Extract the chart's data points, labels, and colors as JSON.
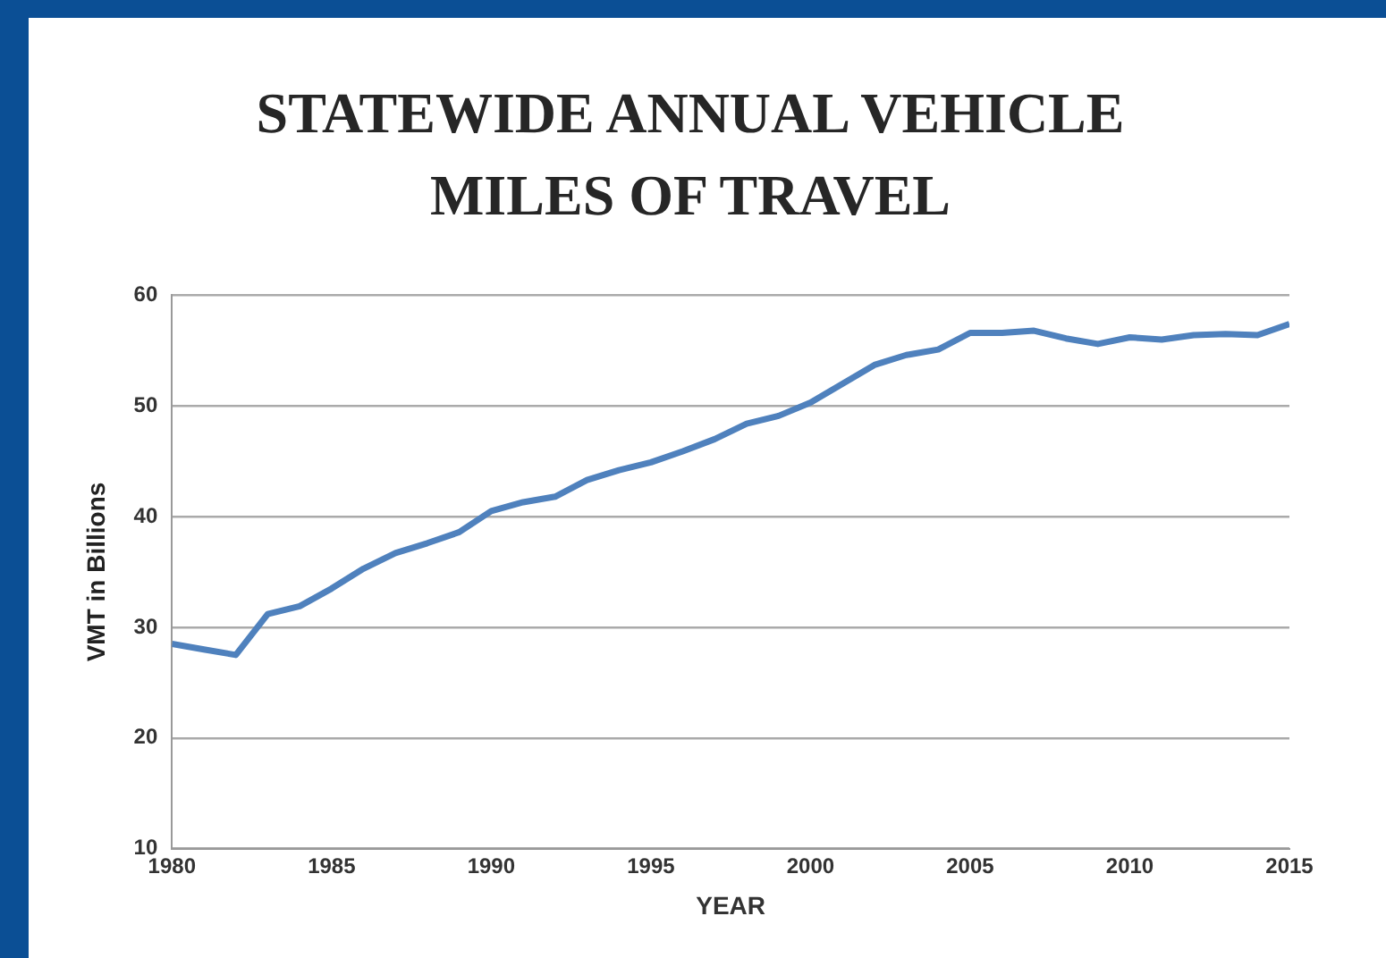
{
  "chart_data": {
    "type": "line",
    "title": "STATEWIDE ANNUAL VEHICLE\nMILES OF TRAVEL",
    "xlabel": "YEAR",
    "ylabel": "VMT in Billions",
    "x": [
      1980,
      1981,
      1982,
      1983,
      1984,
      1985,
      1986,
      1987,
      1988,
      1989,
      1990,
      1991,
      1992,
      1993,
      1994,
      1995,
      1996,
      1997,
      1998,
      1999,
      2000,
      2001,
      2002,
      2003,
      2004,
      2005,
      2006,
      2007,
      2008,
      2009,
      2010,
      2011,
      2012,
      2013,
      2014,
      2015
    ],
    "series": [
      {
        "color": "#4f81bd",
        "values": [
          28.5,
          28.0,
          27.5,
          31.2,
          31.9,
          33.5,
          35.3,
          36.7,
          37.6,
          38.6,
          40.5,
          41.3,
          41.8,
          43.3,
          44.2,
          44.9,
          45.9,
          47.0,
          48.4,
          49.1,
          50.3,
          52.0,
          53.7,
          54.6,
          55.1,
          56.6,
          56.6,
          56.8,
          56.1,
          55.6,
          56.2,
          56.0,
          56.4,
          56.5,
          56.4,
          57.4
        ]
      }
    ],
    "xlim": [
      1980,
      2015
    ],
    "xticks": [
      1980,
      1985,
      1990,
      1995,
      2000,
      2005,
      2010,
      2015
    ],
    "ylim": [
      10,
      60
    ],
    "yticks": [
      10,
      20,
      30,
      40,
      50,
      60
    ],
    "grid": "y",
    "legend": false,
    "marker": "none",
    "line_style": "solid"
  }
}
